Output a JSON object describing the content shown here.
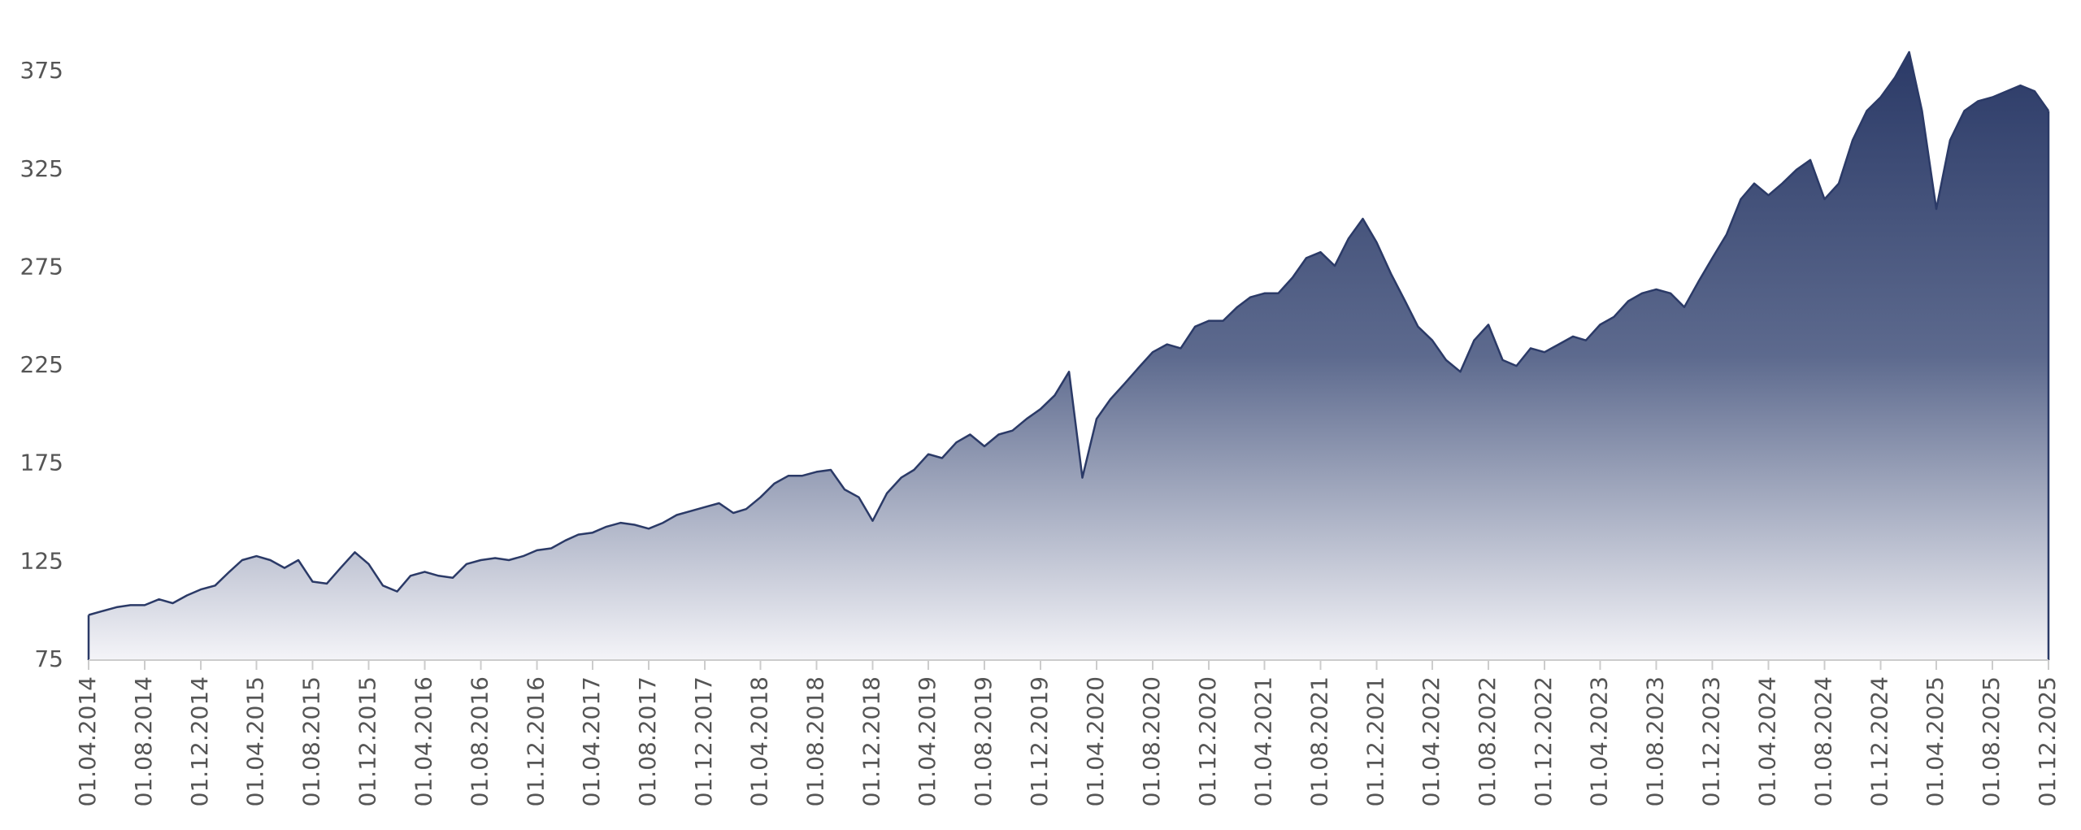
{
  "chart_data": {
    "type": "area",
    "x": [
      "01.04.2014",
      "01.05.2014",
      "01.06.2014",
      "01.07.2014",
      "01.08.2014",
      "01.09.2014",
      "01.10.2014",
      "01.11.2014",
      "01.12.2014",
      "01.01.2015",
      "01.02.2015",
      "01.03.2015",
      "01.04.2015",
      "01.05.2015",
      "01.06.2015",
      "01.07.2015",
      "01.08.2015",
      "01.09.2015",
      "01.10.2015",
      "01.11.2015",
      "01.12.2015",
      "01.01.2016",
      "01.02.2016",
      "01.03.2016",
      "01.04.2016",
      "01.05.2016",
      "01.06.2016",
      "01.07.2016",
      "01.08.2016",
      "01.09.2016",
      "01.10.2016",
      "01.11.2016",
      "01.12.2016",
      "01.01.2017",
      "01.02.2017",
      "01.03.2017",
      "01.04.2017",
      "01.05.2017",
      "01.06.2017",
      "01.07.2017",
      "01.08.2017",
      "01.09.2017",
      "01.10.2017",
      "01.11.2017",
      "01.12.2017",
      "01.01.2018",
      "01.02.2018",
      "01.03.2018",
      "01.04.2018",
      "01.05.2018",
      "01.06.2018",
      "01.07.2018",
      "01.08.2018",
      "01.09.2018",
      "01.10.2018",
      "01.11.2018",
      "01.12.2018",
      "01.01.2019",
      "01.02.2019",
      "01.03.2019",
      "01.04.2019",
      "01.05.2019",
      "01.06.2019",
      "01.07.2019",
      "01.08.2019",
      "01.09.2019",
      "01.10.2019",
      "01.11.2019",
      "01.12.2019",
      "01.01.2020",
      "01.02.2020",
      "01.03.2020",
      "01.04.2020",
      "01.05.2020",
      "01.06.2020",
      "01.07.2020",
      "01.08.2020",
      "01.09.2020",
      "01.10.2020",
      "01.11.2020",
      "01.12.2020",
      "01.01.2021",
      "01.02.2021",
      "01.03.2021",
      "01.04.2021",
      "01.05.2021",
      "01.06.2021",
      "01.07.2021",
      "01.08.2021",
      "01.09.2021",
      "01.10.2021",
      "01.11.2021",
      "01.12.2021",
      "01.01.2022",
      "01.02.2022",
      "01.03.2022",
      "01.04.2022",
      "01.05.2022",
      "01.06.2022",
      "01.07.2022",
      "01.08.2022",
      "01.09.2022",
      "01.10.2022",
      "01.11.2022",
      "01.12.2022",
      "01.01.2023",
      "01.02.2023",
      "01.03.2023",
      "01.04.2023",
      "01.05.2023",
      "01.06.2023",
      "01.07.2023",
      "01.08.2023",
      "01.09.2023",
      "01.10.2023",
      "01.11.2023",
      "01.12.2023",
      "01.01.2024",
      "01.02.2024",
      "01.03.2024",
      "01.04.2024",
      "01.05.2024",
      "01.06.2024",
      "01.07.2024",
      "01.08.2024",
      "01.09.2024",
      "01.10.2024",
      "01.11.2024",
      "01.12.2024",
      "01.01.2025",
      "01.02.2025",
      "01.03.2025",
      "01.04.2025",
      "01.05.2025",
      "01.06.2025",
      "01.07.2025",
      "01.08.2025",
      "01.09.2025",
      "01.10.2025",
      "01.11.2025",
      "01.12.2025"
    ],
    "values": [
      98,
      100,
      102,
      103,
      103,
      106,
      104,
      108,
      111,
      113,
      120,
      126,
      128,
      126,
      122,
      126,
      115,
      114,
      122,
      130,
      124,
      113,
      110,
      118,
      120,
      118,
      117,
      124,
      126,
      127,
      126,
      128,
      131,
      132,
      136,
      139,
      140,
      143,
      145,
      144,
      142,
      145,
      149,
      151,
      153,
      155,
      150,
      152,
      158,
      165,
      169,
      169,
      171,
      172,
      162,
      158,
      146,
      160,
      168,
      172,
      180,
      178,
      186,
      190,
      184,
      190,
      192,
      198,
      203,
      210,
      222,
      168,
      198,
      208,
      216,
      224,
      232,
      236,
      234,
      245,
      248,
      248,
      255,
      260,
      262,
      262,
      270,
      280,
      283,
      276,
      290,
      300,
      288,
      272,
      258,
      245,
      238,
      228,
      222,
      238,
      246,
      228,
      225,
      234,
      232,
      236,
      240,
      238,
      246,
      250,
      258,
      262,
      264,
      262,
      255,
      268,
      280,
      292,
      310,
      318,
      312,
      318,
      325,
      330,
      310,
      318,
      340,
      355,
      362,
      372,
      385,
      355,
      305,
      340,
      355,
      360,
      362,
      365,
      368,
      365,
      355
    ],
    "color": "#2b3a67",
    "xlim": [
      "01.04.2014",
      "01.12.2025"
    ],
    "xticks": [
      "01.04.2014",
      "01.08.2014",
      "01.12.2014",
      "01.04.2015",
      "01.08.2015",
      "01.12.2015",
      "01.04.2016",
      "01.08.2016",
      "01.12.2016",
      "01.04.2017",
      "01.08.2017",
      "01.12.2017",
      "01.04.2018",
      "01.08.2018",
      "01.12.2018",
      "01.04.2019",
      "01.08.2019",
      "01.12.2019",
      "01.04.2020",
      "01.08.2020",
      "01.12.2020",
      "01.04.2021",
      "01.08.2021",
      "01.12.2021",
      "01.04.2022",
      "01.08.2022",
      "01.12.2022",
      "01.04.2023",
      "01.08.2023",
      "01.12.2023",
      "01.04.2024",
      "01.08.2024",
      "01.12.2024",
      "01.04.2025",
      "01.08.2025",
      "01.12.2025"
    ],
    "ylim": [
      75,
      390
    ],
    "yticks": [
      75,
      125,
      175,
      225,
      275,
      325,
      375
    ]
  }
}
